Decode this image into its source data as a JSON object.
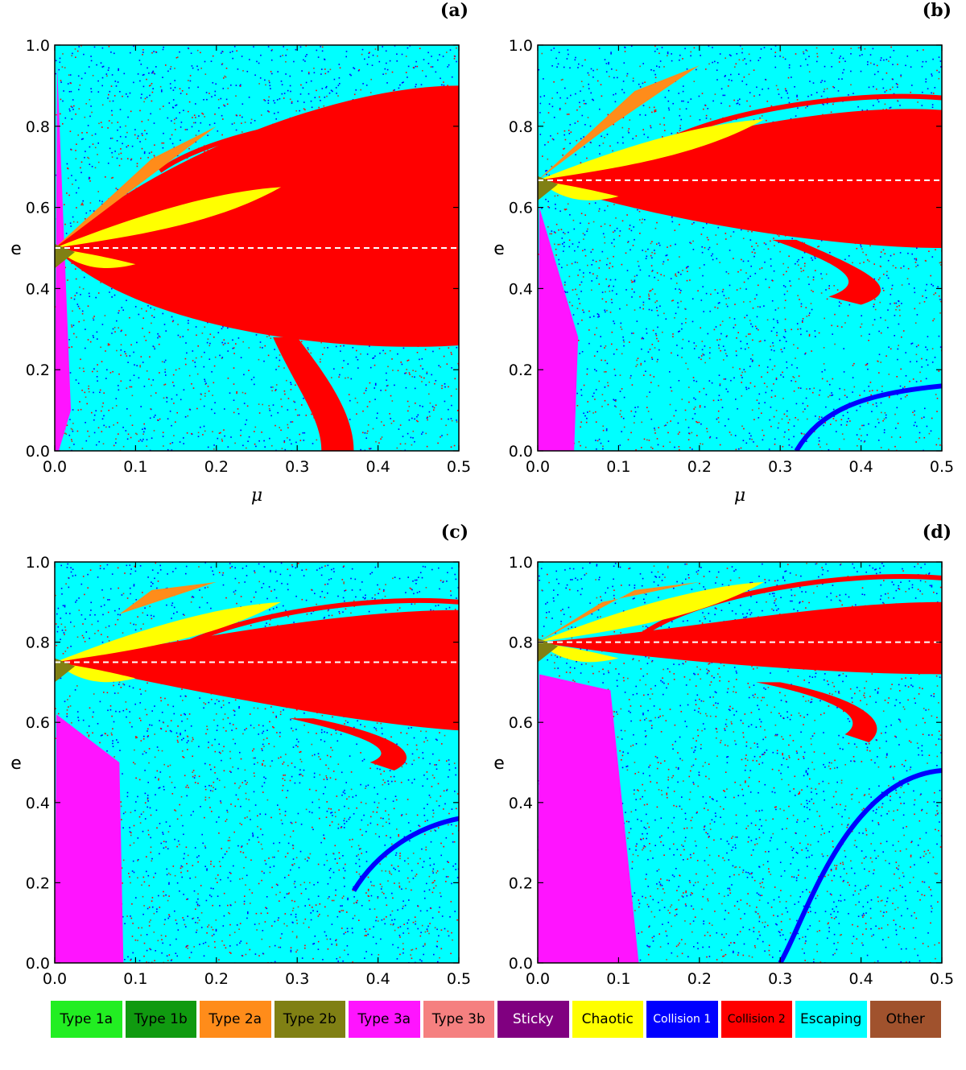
{
  "chart_data": [
    {
      "type": "heatmap",
      "panel_label": "(a)",
      "xlabel": "μ",
      "ylabel": "e",
      "xlim": [
        0.0,
        0.5
      ],
      "ylim": [
        0.0,
        1.0
      ],
      "xticks": [
        "0.0",
        "0.1",
        "0.2",
        "0.3",
        "0.4",
        "0.5"
      ],
      "yticks": [
        "0.0",
        "0.2",
        "0.4",
        "0.6",
        "0.8",
        "1.0"
      ],
      "dashed_line_e": 0.5
    },
    {
      "type": "heatmap",
      "panel_label": "(b)",
      "xlabel": "μ",
      "ylabel": "e",
      "xlim": [
        0.0,
        0.5
      ],
      "ylim": [
        0.0,
        1.0
      ],
      "xticks": [
        "0.0",
        "0.1",
        "0.2",
        "0.3",
        "0.4",
        "0.5"
      ],
      "yticks": [
        "0.0",
        "0.2",
        "0.4",
        "0.6",
        "0.8",
        "1.0"
      ],
      "dashed_line_e": 0.667
    },
    {
      "type": "heatmap",
      "panel_label": "(c)",
      "xlabel": "μ",
      "ylabel": "e",
      "xlim": [
        0.0,
        0.5
      ],
      "ylim": [
        0.0,
        1.0
      ],
      "xticks": [
        "0.0",
        "0.1",
        "0.2",
        "0.3",
        "0.4",
        "0.5"
      ],
      "yticks": [
        "0.0",
        "0.2",
        "0.4",
        "0.6",
        "0.8",
        "1.0"
      ],
      "dashed_line_e": 0.75
    },
    {
      "type": "heatmap",
      "panel_label": "(d)",
      "xlabel": "μ",
      "ylabel": "e",
      "xlim": [
        0.0,
        0.5
      ],
      "ylim": [
        0.0,
        1.0
      ],
      "xticks": [
        "0.0",
        "0.1",
        "0.2",
        "0.3",
        "0.4",
        "0.5"
      ],
      "yticks": [
        "0.0",
        "0.2",
        "0.4",
        "0.6",
        "0.8",
        "1.0"
      ],
      "dashed_line_e": 0.8
    }
  ],
  "legend": [
    {
      "label": "Type 1a",
      "color": "#22ee22"
    },
    {
      "label": "Type 1b",
      "color": "#109a10"
    },
    {
      "label": "Type 2a",
      "color": "#ff8c1a"
    },
    {
      "label": "Type 2b",
      "color": "#808014"
    },
    {
      "label": "Type 3a",
      "color": "#ff14ff"
    },
    {
      "label": "Type 3b",
      "color": "#f58080"
    },
    {
      "label": "Sticky",
      "color": "#800080"
    },
    {
      "label": "Chaotic",
      "color": "#ffff00"
    },
    {
      "label": "Collision 1",
      "color": "#0000ff"
    },
    {
      "label": "Collision 2",
      "color": "#ff0000"
    },
    {
      "label": "Escaping",
      "color": "#00ffff"
    },
    {
      "label": "Other",
      "color": "#a0522d"
    }
  ]
}
